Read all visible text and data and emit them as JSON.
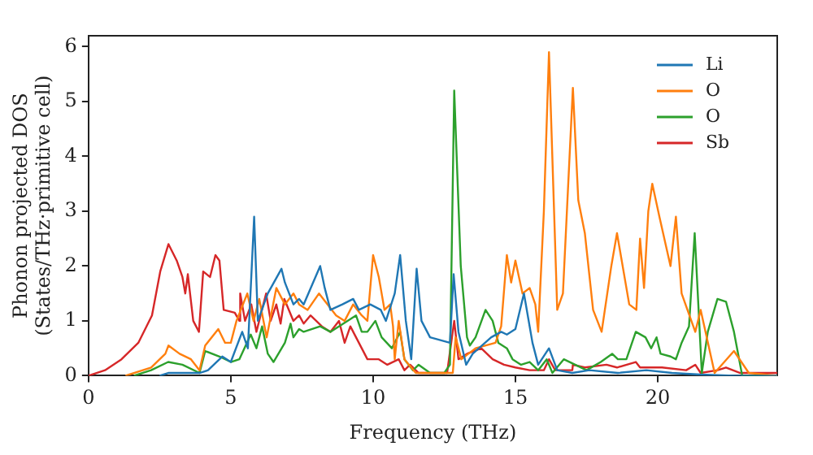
{
  "chart_data": {
    "type": "line",
    "xlabel": "Frequency (THz)",
    "ylabel": "Phonon projected DOS\n(States/THz·primitive cell)",
    "xlim": [
      0,
      24.2
    ],
    "ylim": [
      0,
      6.2
    ],
    "xticks": [
      0,
      5,
      10,
      15,
      20
    ],
    "yticks": [
      0,
      1,
      2,
      3,
      4,
      5,
      6
    ],
    "grid": false,
    "legend": "top right",
    "marker": "none",
    "line_style": "solid",
    "series": [
      {
        "name": "Li",
        "color": "#1f77b4",
        "x": [
          2.5,
          2.8,
          3.5,
          3.9,
          4.2,
          4.7,
          5.0,
          5.4,
          5.6,
          5.82,
          5.95,
          6.3,
          6.78,
          6.9,
          7.2,
          7.4,
          7.56,
          8.14,
          8.3,
          8.5,
          8.92,
          9.3,
          9.5,
          9.9,
          10.27,
          10.45,
          10.76,
          10.95,
          11.15,
          11.34,
          11.53,
          11.7,
          12.0,
          12.7,
          12.83,
          13.0,
          13.27,
          13.5,
          14.15,
          14.5,
          14.7,
          15.0,
          15.3,
          15.6,
          15.8,
          16.18,
          16.47,
          17.0,
          17.6,
          18.6,
          19.6,
          20.5,
          21.5,
          22.7,
          24.2
        ],
        "values": [
          0,
          0.05,
          0.05,
          0.05,
          0.1,
          0.35,
          0.25,
          0.8,
          0.5,
          2.9,
          1.0,
          1.5,
          1.95,
          1.7,
          1.3,
          1.4,
          1.3,
          2.0,
          1.6,
          1.2,
          1.3,
          1.4,
          1.2,
          1.3,
          1.2,
          1.0,
          1.5,
          2.2,
          1.0,
          0.3,
          1.95,
          1.0,
          0.7,
          0.6,
          1.85,
          0.8,
          0.2,
          0.4,
          0.7,
          0.8,
          0.75,
          0.85,
          1.5,
          0.6,
          0.2,
          0.5,
          0.1,
          0.05,
          0.1,
          0.05,
          0.1,
          0.05,
          0.02,
          0,
          0
        ]
      },
      {
        "name": "O",
        "color": "#ff7f0e",
        "x": [
          1.3,
          2.2,
          2.7,
          2.81,
          3.2,
          3.6,
          3.9,
          4.1,
          4.56,
          4.8,
          5.0,
          5.2,
          5.58,
          5.8,
          6.0,
          6.26,
          6.6,
          6.9,
          7.2,
          7.4,
          7.7,
          8.1,
          8.4,
          8.7,
          9.0,
          9.3,
          9.6,
          9.8,
          10.0,
          10.2,
          10.4,
          10.6,
          10.7,
          10.76,
          10.9,
          11.1,
          11.5,
          12.8,
          12.9,
          13.1,
          13.6,
          14.3,
          14.5,
          14.7,
          14.85,
          15.0,
          15.25,
          15.5,
          15.7,
          15.8,
          16.0,
          16.18,
          16.47,
          16.67,
          17.02,
          17.21,
          17.44,
          17.73,
          18.03,
          18.37,
          18.57,
          19.0,
          19.25,
          19.38,
          19.52,
          19.67,
          19.81,
          20.06,
          20.45,
          20.64,
          20.84,
          21.32,
          21.51,
          22.0,
          22.68,
          23.2,
          24.2
        ],
        "values": [
          0,
          0.15,
          0.4,
          0.55,
          0.4,
          0.3,
          0.1,
          0.55,
          0.85,
          0.6,
          0.6,
          1.0,
          1.5,
          1.0,
          1.4,
          0.7,
          1.6,
          1.3,
          1.5,
          1.3,
          1.2,
          1.5,
          1.3,
          1.1,
          1.0,
          1.3,
          1.1,
          1.0,
          2.2,
          1.8,
          1.2,
          1.3,
          0.9,
          0.3,
          1.0,
          0.3,
          0.05,
          0.05,
          0.7,
          0.3,
          0.5,
          0.6,
          0.9,
          2.2,
          1.7,
          2.1,
          1.5,
          1.6,
          1.3,
          0.8,
          3.0,
          5.9,
          1.2,
          1.5,
          5.25,
          3.2,
          2.6,
          1.2,
          0.8,
          2.0,
          2.6,
          1.3,
          1.2,
          2.5,
          1.6,
          3.0,
          3.5,
          2.9,
          2.0,
          2.9,
          1.5,
          0.8,
          1.2,
          0.05,
          0.45,
          0.05,
          0
        ]
      },
      {
        "name": "O",
        "color": "#2ca02c",
        "x": [
          1.6,
          2.2,
          2.8,
          3.3,
          3.9,
          4.1,
          4.6,
          5.0,
          5.3,
          5.7,
          5.9,
          6.1,
          6.3,
          6.5,
          6.9,
          7.1,
          7.2,
          7.4,
          7.56,
          8.14,
          8.5,
          9.4,
          9.6,
          9.8,
          10.08,
          10.3,
          10.66,
          10.95,
          11.1,
          11.4,
          11.6,
          12.0,
          12.5,
          12.7,
          12.85,
          13.08,
          13.3,
          13.4,
          13.6,
          13.95,
          14.2,
          14.4,
          14.7,
          14.9,
          15.2,
          15.5,
          15.8,
          16.1,
          16.3,
          16.7,
          17.5,
          18.0,
          18.4,
          18.6,
          18.9,
          19.23,
          19.57,
          19.77,
          19.96,
          20.1,
          20.45,
          20.64,
          20.84,
          21.1,
          21.3,
          21.55,
          21.76,
          22.1,
          22.4,
          22.68,
          22.97,
          24.2
        ],
        "values": [
          0,
          0.1,
          0.25,
          0.2,
          0.05,
          0.45,
          0.35,
          0.25,
          0.3,
          0.75,
          0.5,
          0.9,
          0.4,
          0.25,
          0.6,
          0.95,
          0.7,
          0.85,
          0.8,
          0.9,
          0.8,
          1.1,
          0.8,
          0.8,
          1.0,
          0.7,
          0.5,
          0.8,
          0.3,
          0.1,
          0.2,
          0.05,
          0.05,
          0.2,
          5.2,
          2.0,
          0.7,
          0.55,
          0.7,
          1.2,
          1.0,
          0.6,
          0.5,
          0.3,
          0.2,
          0.25,
          0.1,
          0.3,
          0.05,
          0.3,
          0.1,
          0.25,
          0.4,
          0.3,
          0.3,
          0.8,
          0.7,
          0.5,
          0.7,
          0.4,
          0.35,
          0.3,
          0.6,
          0.9,
          2.6,
          0.05,
          0.8,
          1.4,
          1.35,
          0.8,
          0,
          0
        ]
      },
      {
        "name": "Sb",
        "color": "#d62728",
        "x": [
          0,
          0.58,
          1.16,
          1.75,
          2.23,
          2.52,
          2.81,
          3.1,
          3.3,
          3.4,
          3.49,
          3.68,
          3.88,
          4.03,
          4.27,
          4.46,
          4.6,
          4.75,
          5.14,
          5.3,
          5.33,
          5.5,
          5.72,
          5.9,
          6.24,
          6.4,
          6.6,
          6.75,
          6.88,
          7.2,
          7.4,
          7.56,
          7.8,
          8.2,
          8.5,
          8.8,
          9.0,
          9.2,
          9.5,
          9.8,
          10.2,
          10.5,
          10.9,
          11.1,
          11.3,
          11.6,
          12.6,
          12.85,
          13.0,
          13.3,
          13.8,
          14.2,
          14.6,
          15.0,
          15.5,
          16.0,
          16.18,
          16.4,
          17.0,
          17.02,
          17.44,
          18.2,
          18.57,
          19.23,
          19.38,
          20.15,
          21.0,
          21.32,
          21.51,
          22.1,
          22.4,
          22.9,
          24.2
        ],
        "values": [
          0,
          0.1,
          0.3,
          0.6,
          1.1,
          1.9,
          2.4,
          2.1,
          1.8,
          1.5,
          1.85,
          1.0,
          0.8,
          1.9,
          1.8,
          2.2,
          2.1,
          1.2,
          1.15,
          1.0,
          1.5,
          1.0,
          1.3,
          0.8,
          1.5,
          1.0,
          1.3,
          0.95,
          1.4,
          1.0,
          1.1,
          0.95,
          1.1,
          0.9,
          0.8,
          1.0,
          0.6,
          0.9,
          0.6,
          0.3,
          0.3,
          0.2,
          0.3,
          0.1,
          0.2,
          0.05,
          0.05,
          1.0,
          0.3,
          0.4,
          0.5,
          0.3,
          0.2,
          0.15,
          0.1,
          0.1,
          0.3,
          0.1,
          0.1,
          0.2,
          0.15,
          0.2,
          0.15,
          0.25,
          0.15,
          0.15,
          0.1,
          0.2,
          0.05,
          0.1,
          0.15,
          0.05,
          0.05
        ]
      }
    ]
  }
}
